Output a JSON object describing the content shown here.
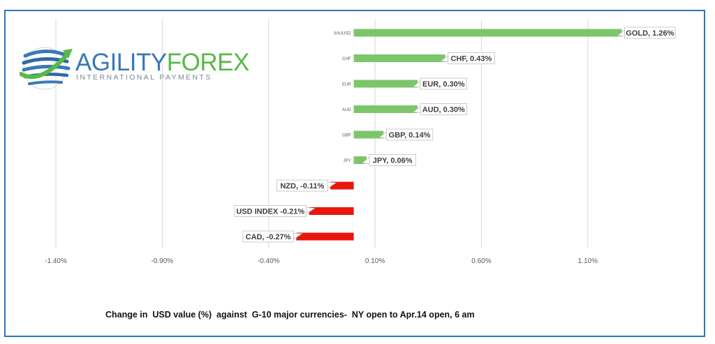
{
  "logo": {
    "word_part1": "AGILITY",
    "word_part2": "FOREX",
    "subtitle": "INTERNATIONAL PAYMENTS",
    "colors": {
      "blue": "#3a79b5",
      "green": "#58b947"
    }
  },
  "caption": "Change in  USD value (%)  against  G-10 major currencies-  NY open to Apr.14 open, 6 am",
  "chart_data": {
    "type": "bar",
    "orientation": "horizontal",
    "categories": [
      "XAUUSD",
      "CHF",
      "EUR",
      "AUD",
      "GBP",
      "JPY",
      "",
      "",
      ""
    ],
    "values": [
      1.26,
      0.43,
      0.3,
      0.3,
      0.14,
      0.06,
      -0.11,
      -0.21,
      -0.27
    ],
    "data_labels": [
      "GOLD, 1.26%",
      "CHF, 0.43%",
      "EUR, 0.30%",
      "AUD, 0.30%",
      "GBP, 0.14%",
      "JPY, 0.06%",
      "NZD, -0.11%",
      "USD INDEX -0.21%",
      "CAD, -0.27%"
    ],
    "x_ticks": [
      "-1.40%",
      "-0.90%",
      "-0.40%",
      "0.10%",
      "0.60%",
      "1.10%"
    ],
    "x_tick_values": [
      -1.4,
      -0.9,
      -0.4,
      0.1,
      0.6,
      1.1
    ],
    "xlim": [
      -1.4,
      1.35
    ],
    "grid": "vertical",
    "colors": {
      "positive": "#7cc66a",
      "negative": "#e8160c"
    }
  }
}
